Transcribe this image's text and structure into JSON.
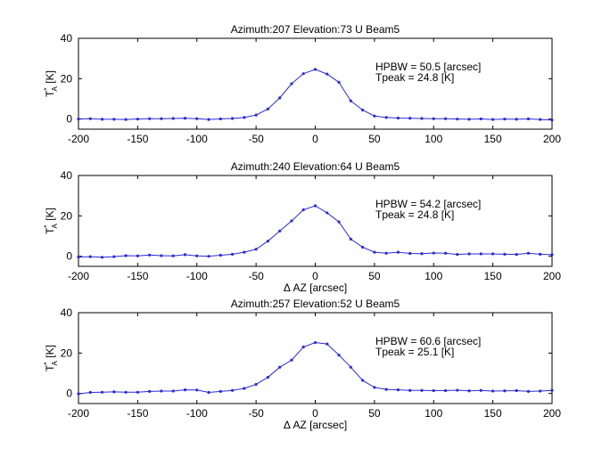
{
  "chart_data": [
    {
      "type": "line",
      "title": "Azimuth:207 Elevation:73 U Beam5",
      "xlabel": "",
      "ylabel_main": "T",
      "ylabel_sup": "*",
      "ylabel_sub": "A",
      "ylabel_unit": "[K]",
      "xlim": [
        -200,
        200
      ],
      "ylim": [
        -5,
        40
      ],
      "xticks": [
        "-200",
        "-150",
        "-100",
        "-50",
        "0",
        "50",
        "100",
        "150",
        "200"
      ],
      "yticks": [
        "0",
        "20",
        "40"
      ],
      "annotations": [
        "HPBW = 50.5 [arcsec]",
        "Tpeak = 24.8 [K]"
      ],
      "color": "#2b2bd1",
      "grid": false,
      "x": [
        -200,
        -190,
        -180,
        -170,
        -160,
        -150,
        -140,
        -130,
        -120,
        -110,
        -100,
        -90,
        -80,
        -70,
        -60,
        -50,
        -40,
        -30,
        -20,
        -10,
        0,
        10,
        20,
        30,
        40,
        50,
        60,
        70,
        80,
        90,
        100,
        110,
        120,
        130,
        140,
        150,
        160,
        170,
        180,
        190,
        200
      ],
      "y": [
        0.1,
        0.2,
        -0.1,
        -0.1,
        -0.2,
        0.0,
        0.2,
        0.2,
        0.3,
        0.4,
        0.2,
        -0.2,
        0.1,
        0.3,
        0.8,
        2.0,
        5.0,
        10.5,
        17.5,
        22.5,
        24.6,
        22.3,
        18.2,
        9.0,
        4.5,
        1.5,
        0.8,
        0.5,
        0.4,
        0.3,
        0.2,
        0.2,
        0.0,
        -0.1,
        0.1,
        -0.2,
        0.0,
        -0.1,
        0.1,
        -0.2,
        -0.5
      ]
    },
    {
      "type": "line",
      "title": "Azimuth:240 Elevation:64 U Beam5",
      "xlabel": "Δ AZ  [arcsec]",
      "ylabel_main": "T",
      "ylabel_sup": "*",
      "ylabel_sub": "A",
      "ylabel_unit": "[K]",
      "xlim": [
        -200,
        200
      ],
      "ylim": [
        -5,
        40
      ],
      "xticks": [
        "-200",
        "-150",
        "-100",
        "-50",
        "0",
        "50",
        "100",
        "150",
        "200"
      ],
      "yticks": [
        "0",
        "20",
        "40"
      ],
      "annotations": [
        "HPBW = 54.2 [arcsec]",
        "Tpeak = 24.8 [K]"
      ],
      "color": "#2b2bd1",
      "grid": false,
      "x": [
        -200,
        -190,
        -180,
        -170,
        -160,
        -150,
        -140,
        -130,
        -120,
        -110,
        -100,
        -90,
        -80,
        -70,
        -60,
        -50,
        -40,
        -30,
        -20,
        -10,
        0,
        10,
        20,
        30,
        40,
        50,
        60,
        70,
        80,
        90,
        100,
        110,
        120,
        130,
        140,
        150,
        160,
        170,
        180,
        190,
        200
      ],
      "y": [
        -0.4,
        -0.2,
        -0.5,
        -0.2,
        0.3,
        0.2,
        0.6,
        0.3,
        0.2,
        0.8,
        0.2,
        0.0,
        0.5,
        1.0,
        2.0,
        3.5,
        7.5,
        12.5,
        17.5,
        23.0,
        25.0,
        21.5,
        17.0,
        8.5,
        4.5,
        2.0,
        1.5,
        2.0,
        1.4,
        1.3,
        1.6,
        1.5,
        0.9,
        1.2,
        1.2,
        1.2,
        1.0,
        0.9,
        1.5,
        1.0,
        0.8
      ]
    },
    {
      "type": "line",
      "title": "Azimuth:257 Elevation:52 U Beam5",
      "xlabel": "Δ AZ  [arcsec]",
      "ylabel_main": "T",
      "ylabel_sup": "*",
      "ylabel_sub": "A",
      "ylabel_unit": "[K]",
      "xlim": [
        -200,
        200
      ],
      "ylim": [
        -5,
        40
      ],
      "xticks": [
        "-200",
        "-150",
        "-100",
        "-50",
        "0",
        "50",
        "100",
        "150",
        "200"
      ],
      "yticks": [
        "0",
        "20",
        "40"
      ],
      "annotations": [
        "HPBW = 60.6 [arcsec]",
        "Tpeak = 25.1 [K]"
      ],
      "color": "#2b2bd1",
      "grid": false,
      "x": [
        -200,
        -190,
        -180,
        -170,
        -160,
        -150,
        -140,
        -130,
        -120,
        -110,
        -100,
        -90,
        -80,
        -70,
        -60,
        -50,
        -40,
        -30,
        -20,
        -10,
        0,
        10,
        20,
        30,
        40,
        50,
        60,
        70,
        80,
        90,
        100,
        110,
        120,
        130,
        140,
        150,
        160,
        170,
        180,
        190,
        200
      ],
      "y": [
        -0.2,
        0.5,
        0.6,
        0.8,
        0.6,
        0.6,
        1.0,
        1.2,
        1.2,
        1.8,
        1.7,
        0.5,
        1.0,
        1.5,
        2.5,
        4.5,
        8.0,
        13.0,
        16.5,
        23.0,
        25.2,
        24.5,
        19.0,
        13.0,
        6.5,
        3.0,
        2.0,
        1.8,
        1.5,
        1.5,
        1.4,
        1.4,
        1.6,
        1.3,
        1.5,
        1.2,
        1.3,
        1.4,
        1.0,
        1.2,
        1.5
      ]
    }
  ]
}
